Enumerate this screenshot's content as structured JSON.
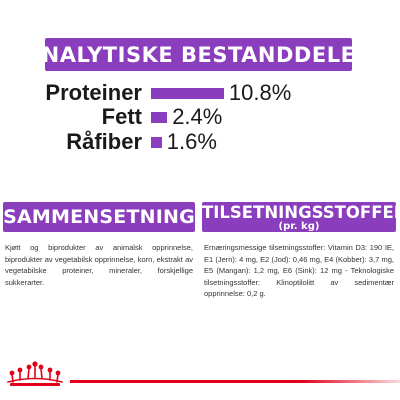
{
  "analysis": {
    "title": "ANALYTISKE BESTANDDELER",
    "rows": [
      {
        "label": "Proteiner",
        "value": "10.8%",
        "percent": 10.8
      },
      {
        "label": "Fett",
        "value": "2.4%",
        "percent": 2.4
      },
      {
        "label": "Råfiber",
        "value": "1.6%",
        "percent": 1.6
      }
    ]
  },
  "composition": {
    "title": "SAMMENSETNING",
    "text": "Kjøtt og biprodukter av animalsk opprinnelse, biprodukter av vegetabilsk opprinnelse, korn, ekstrakt av vegetabilske proteiner, mineraler, forskjellige sukkerarter."
  },
  "additives": {
    "title": "TILSETNINGSSTOFFER",
    "subtitle": "(pr. kg)",
    "text": "Ernæringsmessige tilsetningsstoffer: Vitamin D3: 190 IE, E1 (Jern): 4 mg, E2 (Jod): 0,46 mg, E4 (Kobber): 3,7 mg, E5 (Mangan): 1,2 mg, E6 (Sink): 12 mg - Teknologiske tilsetningsstoffer: Klinoptilolitt av sedimentær opprinnelse: 0,2 g."
  },
  "colors": {
    "accent": "#8a3dbd",
    "brand_red": "#e2001a"
  },
  "logo": {
    "name": "royal-canin-crown-logo"
  }
}
